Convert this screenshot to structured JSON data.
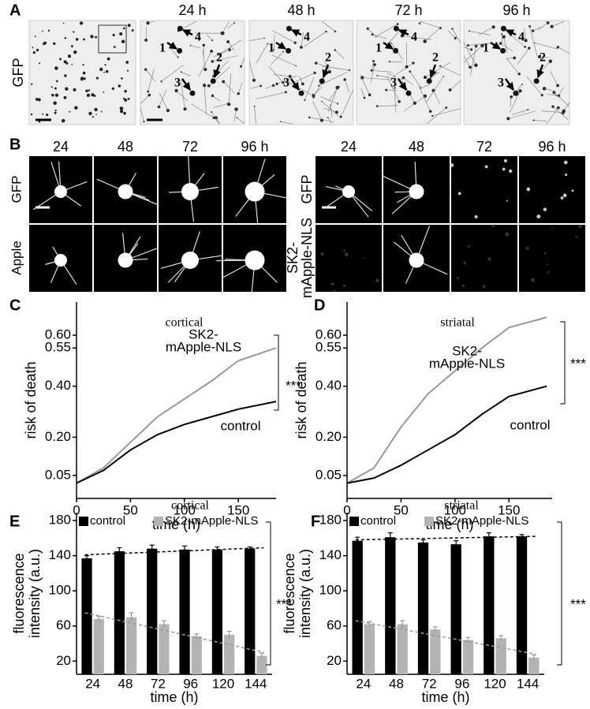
{
  "panels": {
    "a": {
      "label": "A",
      "row_label": "GFP",
      "times": [
        "24 h",
        "48 h",
        "72 h",
        "96 h"
      ],
      "cell_numbers": [
        "1",
        "2",
        "3",
        "4"
      ]
    },
    "b": {
      "label": "B",
      "left": {
        "times": [
          "24",
          "48",
          "72",
          "96 h"
        ],
        "row_labels": [
          "GFP",
          "Apple"
        ]
      },
      "right": {
        "times": [
          "24",
          "48",
          "72",
          "96 h"
        ],
        "row_labels": [
          "GFP",
          "SK2-",
          "mApple-NLS"
        ]
      }
    },
    "c": {
      "label": "C"
    },
    "d": {
      "label": "D"
    },
    "e": {
      "label": "E"
    },
    "f": {
      "label": "F"
    }
  },
  "chart_data": [
    {
      "type": "line",
      "title": "cortical",
      "x_label": "time (h)",
      "y_label": "risk of death",
      "x": [
        0,
        25,
        50,
        75,
        100,
        125,
        150,
        185
      ],
      "xlim": [
        0,
        185
      ],
      "xticks": [
        0,
        50,
        100,
        150
      ],
      "ylim": [
        -0.04,
        0.73
      ],
      "yticks": [
        0.05,
        {
          "value": 0.2,
          "label": "0.20"
        },
        {
          "value": 0.4,
          "label": "0.40"
        },
        0.55,
        {
          "value": 0.6,
          "label": "0.60"
        }
      ],
      "series": [
        {
          "color": "#999999",
          "values": [
            0.02,
            0.08,
            0.18,
            0.28,
            0.35,
            0.42,
            0.5,
            0.55
          ]
        },
        {
          "color": "#000000",
          "values": [
            0.02,
            0.07,
            0.15,
            0.21,
            0.25,
            0.28,
            0.31,
            0.34
          ]
        }
      ],
      "annotations": [
        "SK2-",
        "mApple-NLS",
        "control",
        "***"
      ]
    },
    {
      "type": "line",
      "title": "striatal",
      "x_label": "time (h)",
      "y_label": "risk of death",
      "x": [
        0,
        25,
        50,
        75,
        100,
        125,
        150,
        185
      ],
      "xlim": [
        0,
        190
      ],
      "xticks": [
        0,
        50,
        100,
        150
      ],
      "ylim": [
        -0.04,
        0.73
      ],
      "yticks": [
        0.05,
        {
          "value": 0.2,
          "label": "0.20"
        },
        {
          "value": 0.4,
          "label": "0.40"
        },
        0.55,
        {
          "value": 0.6,
          "label": "0.60"
        }
      ],
      "series": [
        {
          "color": "#999999",
          "values": [
            0.02,
            0.08,
            0.24,
            0.37,
            0.46,
            0.55,
            0.63,
            0.67
          ]
        },
        {
          "color": "#000000",
          "values": [
            0.02,
            0.04,
            0.09,
            0.15,
            0.21,
            0.29,
            0.36,
            0.4
          ]
        }
      ],
      "annotations": [
        "SK2-",
        "mApple-NLS",
        "control",
        "***"
      ]
    },
    {
      "type": "bar",
      "title": "cortical",
      "x_label": "time (h)",
      "y_label": [
        "fluorescence",
        "intensity (a.u.)"
      ],
      "categories": [
        "24",
        "48",
        "72",
        "96",
        "120",
        "144"
      ],
      "ylim": [
        5,
        189
      ],
      "yticks": [
        20,
        60,
        100,
        140,
        180
      ],
      "legend": "top",
      "series": [
        {
          "name": "control",
          "color": "#000000",
          "values": [
            137,
            145,
            148,
            147,
            147,
            148
          ],
          "errors": [
            3,
            4,
            4,
            4,
            3,
            2
          ],
          "trend": [
            141,
            149
          ]
        },
        {
          "name": "SK2-mApple-NLS",
          "color": "#b3b3b3",
          "values": [
            68,
            70,
            62,
            48,
            50,
            26
          ],
          "errors": [
            3,
            5,
            4,
            3,
            4,
            3
          ],
          "trend": [
            75,
            30
          ]
        }
      ],
      "annotations": [
        "***"
      ]
    },
    {
      "type": "bar",
      "title": "striatal",
      "x_label": "time (h)",
      "y_label": [
        "fluorescence",
        "intensity (a.u.)"
      ],
      "categories": [
        "24",
        "48",
        "72",
        "96",
        "120",
        "144"
      ],
      "ylim": [
        5,
        189
      ],
      "yticks": [
        20,
        60,
        100,
        140,
        180
      ],
      "legend": "top",
      "series": [
        {
          "name": "control",
          "color": "#000000",
          "values": [
            157,
            161,
            155,
            153,
            162,
            162
          ],
          "errors": [
            4,
            5,
            3,
            4,
            4,
            2
          ],
          "trend": [
            158,
            162
          ]
        },
        {
          "name": "SK2-mApple-NLS",
          "color": "#b3b3b3",
          "values": [
            62,
            62,
            56,
            44,
            46,
            24
          ],
          "errors": [
            3,
            4,
            3,
            3,
            3,
            3
          ],
          "trend": [
            66,
            28
          ]
        }
      ],
      "annotations": [
        "***"
      ]
    }
  ]
}
